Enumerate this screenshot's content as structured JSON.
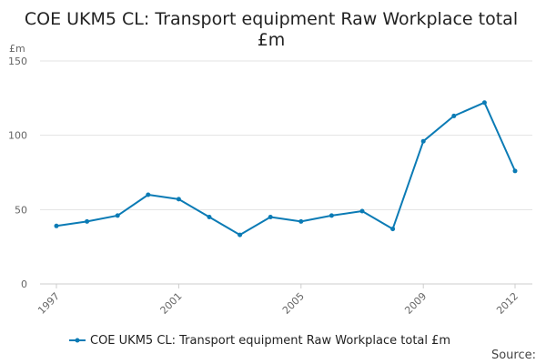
{
  "chart_data": {
    "type": "line",
    "title_lines": [
      "COE UKM5 CL: Transport equipment Raw Workplace total",
      "£m"
    ],
    "ylabel": "£m",
    "ylim": [
      0,
      150
    ],
    "yticks": [
      0,
      50,
      100,
      150
    ],
    "xlim": [
      1997,
      2012
    ],
    "xticks": [
      "1997",
      "2001",
      "2005",
      "2009",
      "2012"
    ],
    "grid": true,
    "legend_position": "bottom",
    "color": "#0b7bb5",
    "series": [
      {
        "name": "COE UKM5 CL: Transport equipment Raw Workplace total £m",
        "x": [
          1997,
          1998,
          1999,
          2000,
          2001,
          2002,
          2003,
          2004,
          2005,
          2006,
          2007,
          2008,
          2009,
          2010,
          2011,
          2012
        ],
        "values": [
          39,
          42,
          46,
          60,
          57,
          45,
          33,
          45,
          42,
          46,
          49,
          37,
          96,
          113,
          122,
          76
        ]
      }
    ],
    "source_label": "Source:"
  }
}
